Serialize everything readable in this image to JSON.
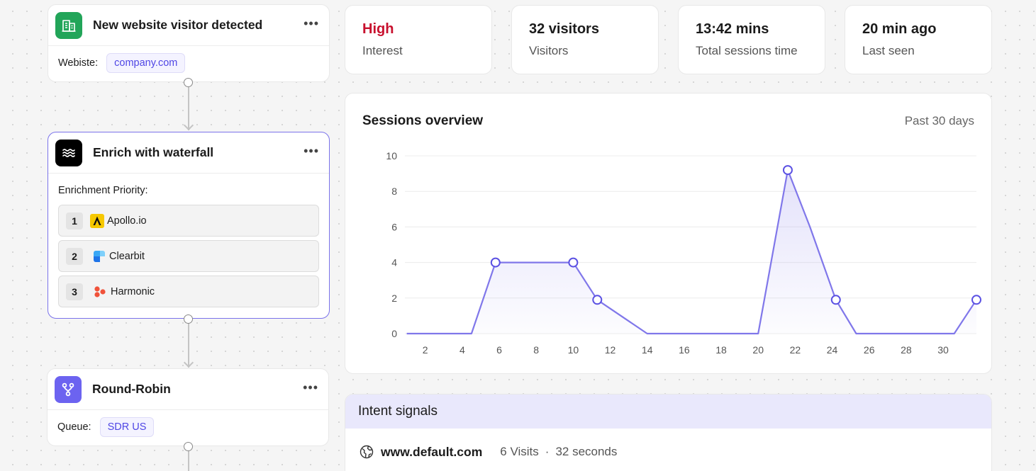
{
  "workflow": {
    "trigger": {
      "title": "New website visitor detected",
      "field_label": "Webiste:",
      "field_value": "company.com",
      "icon": "building-icon",
      "icon_color": "#22a559"
    },
    "enrich": {
      "title": "Enrich with waterfall",
      "priority_label": "Enrichment Priority:",
      "icon": "waves-icon",
      "providers": [
        {
          "rank": "1",
          "name": "Apollo.io",
          "icon": "apollo-icon"
        },
        {
          "rank": "2",
          "name": "Clearbit",
          "icon": "clearbit-icon"
        },
        {
          "rank": "3",
          "name": "Harmonic",
          "icon": "harmonic-icon"
        }
      ]
    },
    "routing": {
      "title": "Round-Robin",
      "field_label": "Queue:",
      "field_value": "SDR US",
      "icon": "branch-icon",
      "icon_color": "#6c63f0"
    },
    "more_label": "•••"
  },
  "stats": [
    {
      "value": "High",
      "label": "Interest"
    },
    {
      "value": "32 visitors",
      "label": "Visitors"
    },
    {
      "value": "13:42 mins",
      "label": "Total sessions time"
    },
    {
      "value": "20 min ago",
      "label": "Last seen"
    }
  ],
  "chart_data": {
    "type": "line",
    "title": "Sessions overview",
    "subtitle": "Past 30 days",
    "x": [
      1,
      4.5,
      5.8,
      10,
      11.3,
      14,
      20,
      21.6,
      22.8,
      24.2,
      25.3,
      30.6,
      31.8
    ],
    "values": [
      0,
      0,
      4,
      4,
      1.9,
      0,
      0,
      9.2,
      6,
      1.9,
      0,
      0,
      1.9
    ],
    "markers": [
      [
        5.8,
        4
      ],
      [
        10,
        4
      ],
      [
        11.3,
        1.9
      ],
      [
        21.6,
        9.2
      ],
      [
        24.2,
        1.9
      ],
      [
        31.8,
        1.9
      ]
    ],
    "xticks": [
      2,
      4,
      6,
      8,
      10,
      12,
      14,
      16,
      18,
      20,
      22,
      24,
      26,
      28,
      30
    ],
    "yticks": [
      0,
      2,
      4,
      6,
      8,
      10
    ],
    "xlim": [
      0.9,
      31.8
    ],
    "ylim": [
      0,
      10
    ],
    "grid": true,
    "color": "#8077ea"
  },
  "intent": {
    "title": "Intent signals",
    "domain": "www.default.com",
    "visits": "6 Visits",
    "separator": "·",
    "duration": "32 seconds",
    "icon": "globe-icon"
  }
}
